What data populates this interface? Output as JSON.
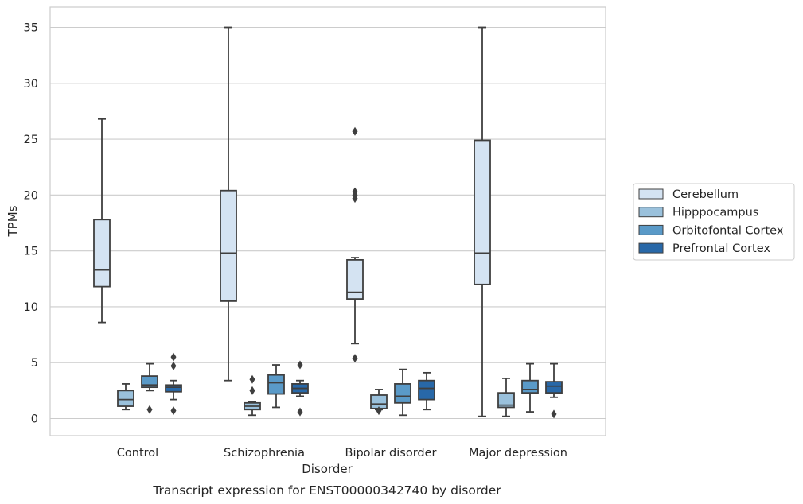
{
  "chart_data": {
    "type": "boxplot",
    "xlabel": "Disorder",
    "ylabel": "TPMs",
    "caption": "Transcript expression for ENST00000342740 by disorder",
    "ylim": [
      -1.5,
      36.8
    ],
    "yticks": [
      0,
      5,
      10,
      15,
      20,
      25,
      30,
      35
    ],
    "grid": "horizontal",
    "legend_position": "right",
    "categories": [
      "Control",
      "Schizophrenia",
      "Bipolar disorder",
      "Major depression"
    ],
    "series": [
      {
        "name": "Cerebellum",
        "color": "#d4e3f2",
        "boxes": [
          {
            "whislo": 8.6,
            "q1": 11.8,
            "med": 13.3,
            "q3": 17.8,
            "whishi": 26.8,
            "fliers": []
          },
          {
            "whislo": 3.4,
            "q1": 10.5,
            "med": 14.8,
            "q3": 20.4,
            "whishi": 35.0,
            "fliers": []
          },
          {
            "whislo": 6.7,
            "q1": 10.7,
            "med": 11.3,
            "q3": 14.2,
            "whishi": 14.4,
            "fliers": [
              5.4,
              19.7,
              20.0,
              20.3,
              25.7
            ]
          },
          {
            "whislo": 0.2,
            "q1": 12.0,
            "med": 14.8,
            "q3": 24.9,
            "whishi": 35.0,
            "fliers": []
          }
        ]
      },
      {
        "name": "Hipppocampus",
        "color": "#9ac1dc",
        "boxes": [
          {
            "whislo": 0.8,
            "q1": 1.1,
            "med": 1.7,
            "q3": 2.5,
            "whishi": 3.1,
            "fliers": []
          },
          {
            "whislo": 0.3,
            "q1": 0.8,
            "med": 1.1,
            "q3": 1.4,
            "whishi": 1.5,
            "fliers": [
              2.5,
              3.5
            ]
          },
          {
            "whislo": 0.8,
            "q1": 0.9,
            "med": 1.3,
            "q3": 2.1,
            "whishi": 2.6,
            "fliers": [
              0.7
            ]
          },
          {
            "whislo": 0.2,
            "q1": 1.0,
            "med": 1.2,
            "q3": 2.3,
            "whishi": 3.6,
            "fliers": []
          }
        ]
      },
      {
        "name": "Orbitofontal Cortex",
        "color": "#5a9ac8",
        "boxes": [
          {
            "whislo": 2.5,
            "q1": 2.8,
            "med": 3.0,
            "q3": 3.8,
            "whishi": 4.9,
            "fliers": [
              0.8
            ]
          },
          {
            "whislo": 1.0,
            "q1": 2.2,
            "med": 3.2,
            "q3": 3.9,
            "whishi": 4.8,
            "fliers": []
          },
          {
            "whislo": 0.3,
            "q1": 1.4,
            "med": 2.0,
            "q3": 3.1,
            "whishi": 4.4,
            "fliers": []
          },
          {
            "whislo": 0.6,
            "q1": 2.3,
            "med": 2.6,
            "q3": 3.4,
            "whishi": 4.9,
            "fliers": []
          }
        ]
      },
      {
        "name": "Prefrontal Cortex",
        "color": "#2868a8",
        "boxes": [
          {
            "whislo": 1.7,
            "q1": 2.4,
            "med": 2.8,
            "q3": 3.0,
            "whishi": 3.4,
            "fliers": [
              0.7,
              4.7,
              5.5
            ]
          },
          {
            "whislo": 2.0,
            "q1": 2.3,
            "med": 2.7,
            "q3": 3.1,
            "whishi": 3.4,
            "fliers": [
              0.6,
              4.8
            ]
          },
          {
            "whislo": 0.8,
            "q1": 1.7,
            "med": 2.7,
            "q3": 3.4,
            "whishi": 4.1,
            "fliers": []
          },
          {
            "whislo": 1.9,
            "q1": 2.3,
            "med": 2.9,
            "q3": 3.3,
            "whishi": 4.9,
            "fliers": [
              0.4
            ]
          }
        ]
      }
    ]
  }
}
